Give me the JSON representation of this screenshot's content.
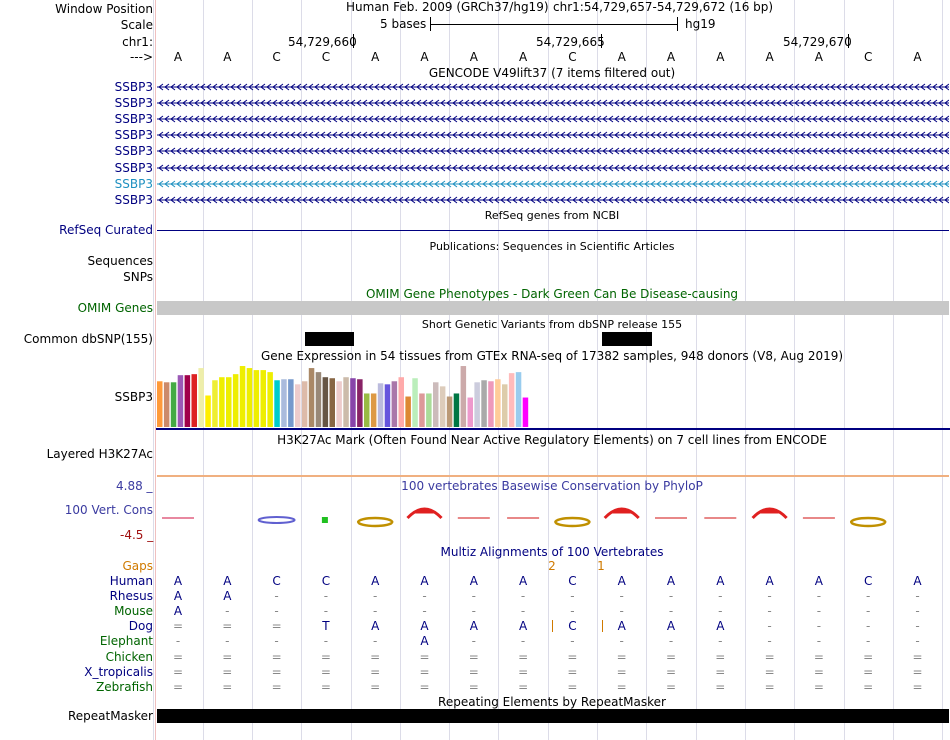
{
  "header": {
    "window_position_label": "Window Position",
    "scale_label": "Scale",
    "chrom_label": "chr1:",
    "strand_label": "--->",
    "assembly_text": "Human Feb. 2009 (GRCh37/hg19)",
    "position_text": "chr1:54,729,657-54,729,672 (16 bp)",
    "scale_text": "5 bases",
    "scale_db": "hg19",
    "coords": [
      "54,729,660",
      "54,729,665",
      "54,729,670"
    ]
  },
  "sequence": [
    "A",
    "A",
    "C",
    "C",
    "A",
    "A",
    "A",
    "A",
    "C",
    "A",
    "A",
    "A",
    "A",
    "A",
    "C",
    "A"
  ],
  "gencode": {
    "title": "GENCODE V49lift37 (7 items filtered out)",
    "rows": [
      "SSBP3",
      "SSBP3",
      "SSBP3",
      "SSBP3",
      "SSBP3",
      "SSBP3",
      "SSBP3",
      "SSBP3"
    ]
  },
  "refseq": {
    "title": "RefSeq genes from NCBI",
    "label": "RefSeq Curated"
  },
  "publications": {
    "title": "Publications: Sequences in Scientific Articles",
    "sequences_label": "Sequences",
    "snps_label": "SNPs"
  },
  "omim": {
    "title": "OMIM Gene Phenotypes - Dark Green Can Be Disease-causing",
    "label": "OMIM Genes"
  },
  "dbsnp": {
    "title": "Short Genetic Variants from dbSNP release 155",
    "label": "Common dbSNP(155)"
  },
  "gtex": {
    "title": "Gene Expression in 54 tissues from GTEx RNA-seq of 17382 samples, 948 donors (V8, Aug 2019)",
    "label": "SSBP3"
  },
  "chart_data": {
    "type": "bar",
    "title": "Gene Expression in 54 tissues from GTEx RNA-seq of 17382 samples, 948 donors (V8, Aug 2019)",
    "series_label": "SSBP3",
    "ylim": [
      0,
      62
    ],
    "values": [
      45,
      44,
      44,
      51,
      51,
      52,
      58,
      31,
      46,
      49,
      49,
      52,
      60,
      58,
      56,
      56,
      54,
      46,
      47,
      47,
      42,
      45,
      58,
      54,
      49,
      48,
      45,
      49,
      48,
      47,
      33,
      33,
      43,
      42,
      45,
      49,
      30,
      48,
      33,
      33,
      44,
      40,
      30,
      33,
      60,
      29,
      44,
      46,
      45,
      47,
      42,
      53,
      54,
      29
    ],
    "colors": [
      "#ff9a3a",
      "#cc8a6a",
      "#44aa44",
      "#9b59b6",
      "#a0004a",
      "#dd2222",
      "#eeeeaa",
      "#ffee00",
      "#eeee33",
      "#eeee00",
      "#eeee00",
      "#eeee00",
      "#eeee00",
      "#eeee00",
      "#eeee00",
      "#eeee00",
      "#eeee00",
      "#00cccc",
      "#aabbdd",
      "#7799cc",
      "#eecccc",
      "#ddbbaa",
      "#aa8866",
      "#998877",
      "#665544",
      "#886644",
      "#eecccc",
      "#ccbbaa",
      "#8844aa",
      "#882266",
      "#99bb44",
      "#dd9944",
      "#bbbbdd",
      "#6655dd",
      "#aa77aa",
      "#ffaaaa",
      "#dd8833",
      "#bbeebb",
      "#dd9999",
      "#aadd99",
      "#ccbbbb",
      "#ddccbb",
      "#bb9977",
      "#007744",
      "#ccaaaa",
      "#ee99cc",
      "#ccccdd",
      "#aaaaaa",
      "#ee99bb",
      "#ffcc99",
      "#ddccaa",
      "#ffbbbb",
      "#99ccee",
      "#ff00ff"
    ]
  },
  "h3k27ac": {
    "title": "H3K27Ac Mark (Often Found Near Active Regulatory Elements) on 7 cell lines from ENCODE",
    "label": "Layered H3K27Ac"
  },
  "phylop": {
    "title": "100 vertebrates Basewise Conservation by PhyloP",
    "label": "100 Vert. Cons",
    "max": "4.88 _",
    "min": "-4.5 _"
  },
  "multiz": {
    "title": "Multiz Alignments of 100 Vertebrates",
    "gaps_label": "Gaps",
    "gap_marks": [
      "2",
      "1"
    ],
    "species": [
      {
        "name": "Human",
        "seq": [
          "A",
          "A",
          "C",
          "C",
          "A",
          "A",
          "A",
          "A",
          "C",
          "A",
          "A",
          "A",
          "A",
          "A",
          "C",
          "A"
        ]
      },
      {
        "name": "Rhesus",
        "seq": [
          "A",
          "A",
          "-",
          "-",
          "-",
          "-",
          "-",
          "-",
          "-",
          "-",
          "-",
          "-",
          "-",
          "-",
          "-",
          "-"
        ]
      },
      {
        "name": "Mouse",
        "seq": [
          "A",
          "-",
          "-",
          "-",
          "-",
          "-",
          "-",
          "-",
          "-",
          "-",
          "-",
          "-",
          "-",
          "-",
          "-",
          "-"
        ]
      },
      {
        "name": "Dog",
        "seq": [
          "=",
          "=",
          "=",
          "T",
          "A",
          "A",
          "A",
          "A",
          "C",
          "A",
          "A",
          "A",
          "-",
          "-",
          "-",
          "-"
        ]
      },
      {
        "name": "Elephant",
        "seq": [
          "-",
          "-",
          "-",
          "-",
          "-",
          "A",
          "-",
          "-",
          "-",
          "-",
          "-",
          "-",
          "-",
          "-",
          "-",
          "-"
        ]
      },
      {
        "name": "Chicken",
        "seq": [
          "=",
          "=",
          "=",
          "=",
          "=",
          "=",
          "=",
          "=",
          "=",
          "=",
          "=",
          "=",
          "=",
          "=",
          "=",
          "="
        ]
      },
      {
        "name": "X_tropicalis",
        "seq": [
          "=",
          "=",
          "=",
          "=",
          "=",
          "=",
          "=",
          "=",
          "=",
          "=",
          "=",
          "=",
          "=",
          "=",
          "=",
          "="
        ]
      },
      {
        "name": "Zebrafish",
        "seq": [
          "=",
          "=",
          "=",
          "=",
          "=",
          "=",
          "=",
          "=",
          "=",
          "=",
          "=",
          "=",
          "=",
          "=",
          "=",
          "="
        ]
      }
    ]
  },
  "repeatmasker": {
    "title": "Repeating Elements by RepeatMasker",
    "label": "RepeatMasker"
  },
  "colors": {
    "gene": "#000080",
    "omim_bar": "#c8c8c8",
    "gap": "#d07a00",
    "species_green": "#006400",
    "h3k27ac_line": "#f0b080"
  }
}
